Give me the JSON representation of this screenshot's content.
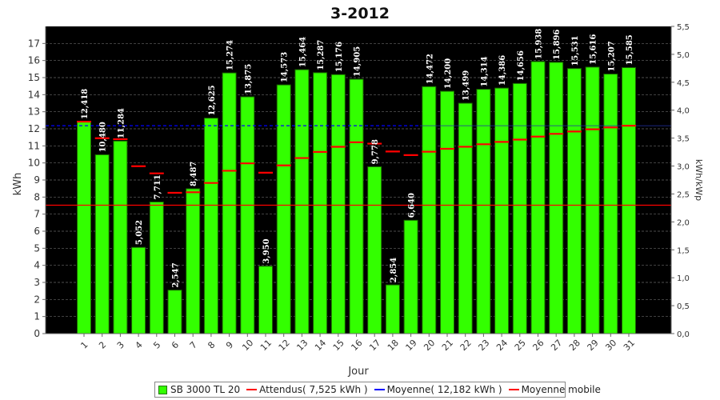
{
  "chart_data": {
    "type": "bar",
    "title": "3-2012",
    "xlabel": "Jour",
    "ylabel": "kWh",
    "y2label": "kWh/kWp",
    "ylim": [
      0,
      18
    ],
    "y2lim": [
      0,
      5.5
    ],
    "yticks": [
      "0",
      "1",
      "2",
      "3",
      "4",
      "5",
      "6",
      "7",
      "8",
      "9",
      "10",
      "11",
      "12",
      "13",
      "14",
      "15",
      "16",
      "17"
    ],
    "y2ticks": [
      "0,0",
      "0,5",
      "1,0",
      "1,5",
      "2,0",
      "2,5",
      "3,0",
      "3,5",
      "4,0",
      "4,5",
      "5,0",
      "5,5"
    ],
    "categories": [
      "1",
      "2",
      "3",
      "4",
      "5",
      "6",
      "7",
      "8",
      "9",
      "10",
      "11",
      "12",
      "13",
      "14",
      "15",
      "16",
      "17",
      "18",
      "19",
      "20",
      "21",
      "22",
      "23",
      "24",
      "25",
      "26",
      "27",
      "28",
      "29",
      "30",
      "31"
    ],
    "series": [
      {
        "name": "SB 3000 TL 20",
        "kind": "bar",
        "values": [
          12.418,
          10.48,
          11.284,
          5.052,
          7.711,
          2.547,
          8.487,
          12.625,
          15.274,
          13.875,
          3.95,
          14.573,
          15.464,
          15.287,
          15.176,
          14.905,
          9.778,
          2.854,
          6.64,
          14.472,
          14.2,
          13.499,
          14.314,
          14.386,
          14.656,
          15.938,
          15.896,
          15.531,
          15.616,
          15.207,
          15.585
        ],
        "labels": [
          "12,418",
          "10,480",
          "11,284",
          "5,052",
          "7,711",
          "2,547",
          "8,487",
          "12,625",
          "15,274",
          "13,875",
          "3,950",
          "14,573",
          "15,464",
          "15,287",
          "15,176",
          "14,905",
          "9,778",
          "2,854",
          "6,640",
          "14,472",
          "14,200",
          "13,499",
          "14,314",
          "14,386",
          "14,656",
          "15,938",
          "15,896",
          "15,531",
          "15,616",
          "15,207",
          "15,585"
        ]
      },
      {
        "name": "Attendus( 7,525 kWh )",
        "kind": "hline",
        "value": 7.525
      },
      {
        "name": "Moyenne( 12,182 kWh )",
        "kind": "hline",
        "value": 12.182,
        "range_to": 19
      },
      {
        "name": "Moyenne mobile",
        "kind": "step",
        "values": [
          12.418,
          11.449,
          11.394,
          9.809,
          9.389,
          8.249,
          8.283,
          8.826,
          9.541,
          9.975,
          9.427,
          9.856,
          10.287,
          10.645,
          10.947,
          11.213,
          11.129,
          10.67,
          10.458,
          10.659,
          10.827,
          10.948,
          11.094,
          11.231,
          11.368,
          11.544,
          11.705,
          11.842,
          11.972,
          12.08,
          12.182
        ]
      }
    ],
    "colors": {
      "plot_bg": "#000000",
      "bar": "#33ff00",
      "bar_edge": "#1a6600",
      "attendus": "#ff0000",
      "moyenne": "#0000ff",
      "mobile": "#ff0000",
      "grid": "#666666"
    },
    "grid": true,
    "legend_position": "bottom"
  }
}
